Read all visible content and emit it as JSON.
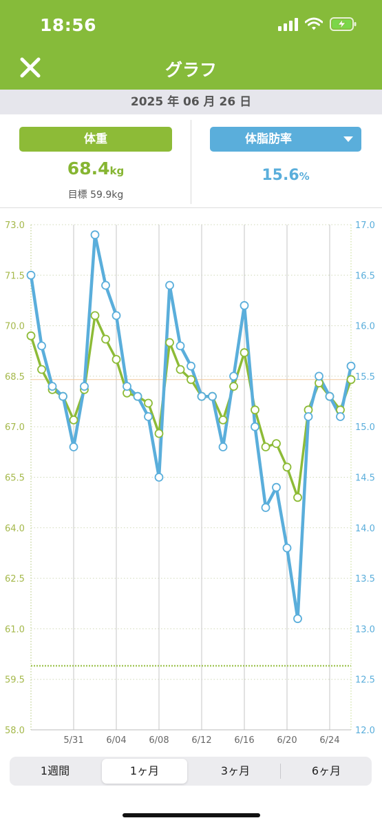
{
  "status_bar": {
    "time": "18:56"
  },
  "nav": {
    "title": "グラフ",
    "close_icon": "close-icon"
  },
  "date_bar": {
    "date": "2025 年 06 月 26 日"
  },
  "weight_panel": {
    "button_label": "体重",
    "value": "68.4",
    "unit": "kg",
    "goal": "目標 59.9kg",
    "color": "#86bb3a"
  },
  "fat_panel": {
    "button_label": "体脂肪率",
    "value": "15.6",
    "unit": "%",
    "color": "#5aaedb",
    "dropdown_icon": "caret-down-icon"
  },
  "chart_data": {
    "type": "line",
    "x_ticks": [
      "5/31",
      "6/04",
      "6/08",
      "6/12",
      "6/16",
      "6/20",
      "6/24"
    ],
    "x_tick_days": [
      31,
      35,
      39,
      43,
      47,
      51,
      55
    ],
    "x": [
      27,
      28,
      29,
      30,
      31,
      32,
      33,
      34,
      35,
      36,
      37,
      38,
      39,
      40,
      41,
      42,
      43,
      44,
      45,
      46,
      47,
      48,
      49,
      50,
      51,
      52,
      53,
      54,
      55,
      56,
      57
    ],
    "left_axis": {
      "range": [
        58.0,
        73.0
      ],
      "ticks": [
        "73.0",
        "71.5",
        "70.0",
        "68.5",
        "67.0",
        "65.5",
        "64.0",
        "62.5",
        "61.0",
        "59.5",
        "58.0"
      ]
    },
    "right_axis": {
      "range": [
        12.0,
        17.0
      ],
      "ticks": [
        "17.0",
        "16.5",
        "16.0",
        "15.5",
        "15.0",
        "14.5",
        "14.0",
        "13.5",
        "13.0",
        "12.5",
        "12.0"
      ]
    },
    "goal_line": 59.9,
    "current_weight_line": 68.4,
    "series": [
      {
        "axis": "left",
        "color": "#8dbb37",
        "values": [
          69.7,
          68.7,
          68.1,
          67.9,
          67.2,
          68.1,
          70.3,
          69.6,
          69.0,
          68.0,
          67.9,
          67.7,
          66.8,
          69.5,
          68.7,
          68.4,
          67.9,
          67.9,
          67.2,
          68.2,
          69.2,
          67.5,
          66.4,
          66.5,
          65.8,
          64.9,
          67.5,
          68.3,
          67.9,
          67.5,
          68.4
        ]
      },
      {
        "axis": "right",
        "color": "#5aaedb",
        "values": [
          16.5,
          15.8,
          15.4,
          15.3,
          14.8,
          15.4,
          16.9,
          16.4,
          16.1,
          15.4,
          15.3,
          15.1,
          14.5,
          16.4,
          15.8,
          15.6,
          15.3,
          15.3,
          14.8,
          15.5,
          16.2,
          15.0,
          14.2,
          14.4,
          13.8,
          13.1,
          15.1,
          15.5,
          15.3,
          15.1,
          15.6
        ]
      }
    ]
  },
  "period_tabs": [
    {
      "label": "1週間",
      "active": false
    },
    {
      "label": "1ヶ月",
      "active": true
    },
    {
      "label": "3ヶ月",
      "active": false
    },
    {
      "label": "6ヶ月",
      "active": false
    }
  ]
}
